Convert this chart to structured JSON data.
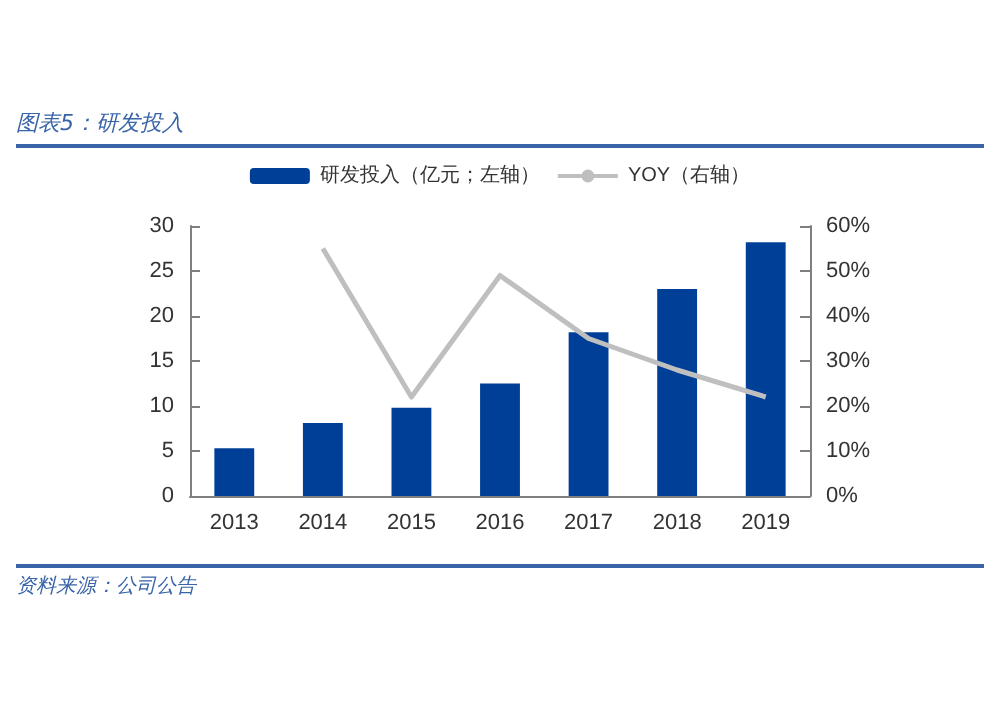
{
  "chart_data": {
    "type": "bar",
    "title": "图表5：研发投入",
    "annotations": [
      "资料来源：公司公告"
    ],
    "categories": [
      "2013",
      "2014",
      "2015",
      "2016",
      "2017",
      "2018",
      "2019"
    ],
    "series": [
      {
        "name": "研发投入（亿元；左轴）",
        "color": "#003f98",
        "values": [
          5.3,
          8.1,
          9.8,
          12.5,
          18.2,
          23.0,
          28.2
        ]
      },
      {
        "name": "YOY（右轴）",
        "type": "line",
        "axis": "y2",
        "color": "#bfbfbf",
        "values": [
          null,
          55,
          22,
          49,
          35,
          28,
          22
        ]
      }
    ],
    "ylim": [
      0,
      30
    ],
    "yticks": [
      0,
      5,
      10,
      15,
      20,
      25,
      30
    ],
    "y2lim": [
      0,
      60
    ],
    "y2ticks": [
      {
        "value": 0,
        "label": "0%"
      },
      {
        "value": 10,
        "label": "10%"
      },
      {
        "value": 20,
        "label": "20%"
      },
      {
        "value": 30,
        "label": "30%"
      },
      {
        "value": 40,
        "label": "40%"
      },
      {
        "value": 50,
        "label": "50%"
      },
      {
        "value": 60,
        "label": "60%"
      }
    ],
    "grid": false,
    "legend": "top",
    "marker": "none"
  }
}
